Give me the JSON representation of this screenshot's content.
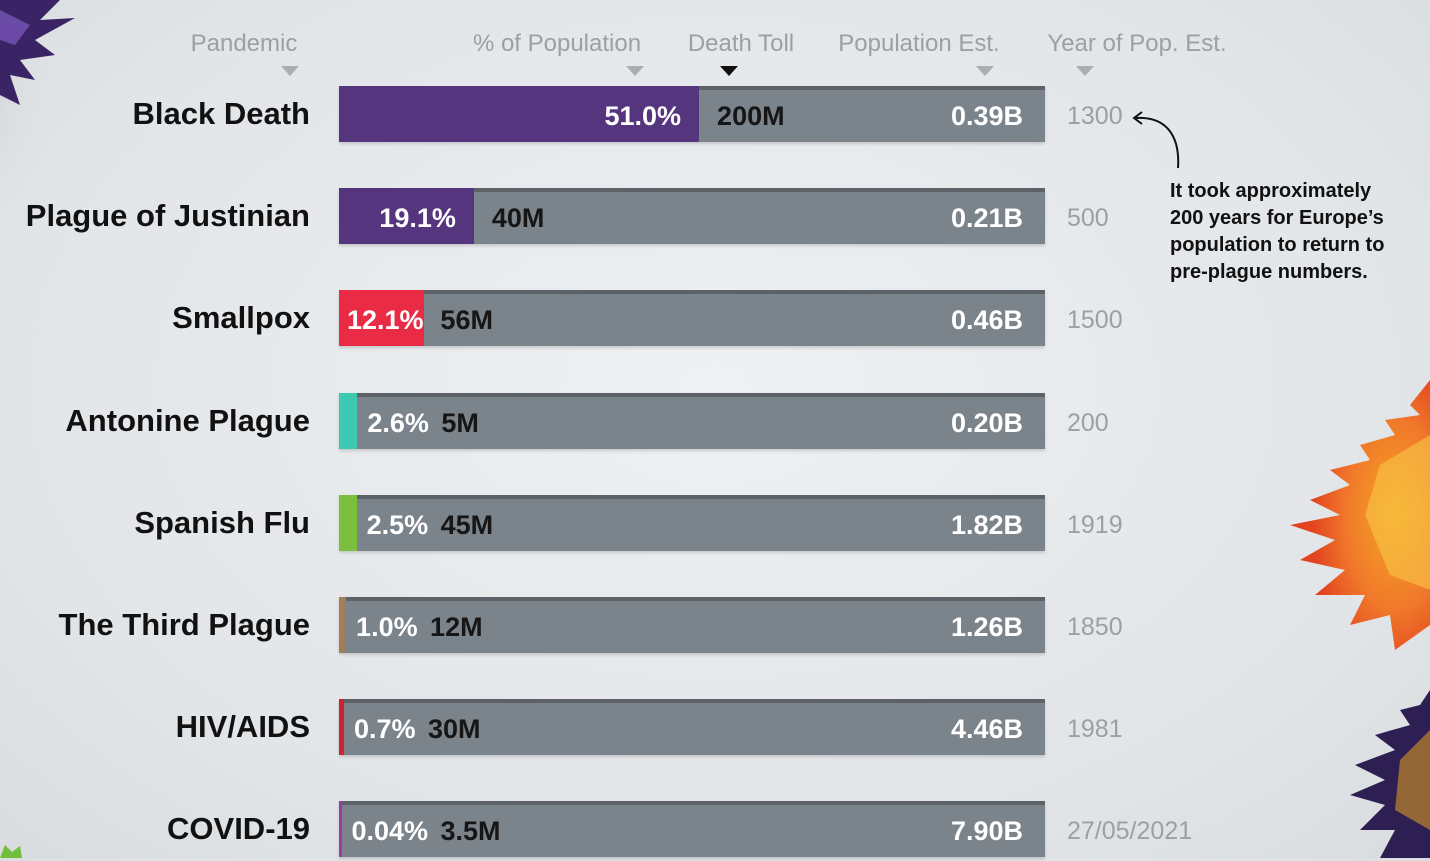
{
  "headers": {
    "pandemic": "Pandemic",
    "pct_population": "% of Population",
    "death_toll": "Death Toll",
    "population_est": "Population Est.",
    "year_of_pop_est": "Year of Pop. Est."
  },
  "colors": {
    "bar_background": "#7b838b",
    "sorted_arrow": "#111111",
    "unsorted_arrow": "#a9aeb3"
  },
  "annotation": {
    "text": "It took approximately 200 years for Europe’s population to return to pre-plague numbers."
  },
  "chart_data": {
    "type": "bar",
    "categories": [
      "Black Death",
      "Plague of Justinian",
      "Smallpox",
      "Antonine Plague",
      "Spanish Flu",
      "The Third Plague",
      "HIV/AIDS",
      "COVID-19"
    ],
    "values": [
      51.0,
      19.1,
      12.1,
      2.6,
      2.5,
      1.0,
      0.7,
      0.04
    ],
    "rows": [
      {
        "name": "Black Death",
        "pct": 51.0,
        "pct_label": "51.0%",
        "death_toll": "200M",
        "population": "0.39B",
        "year": "1300",
        "color": "#55357e"
      },
      {
        "name": "Plague of Justinian",
        "pct": 19.1,
        "pct_label": "19.1%",
        "death_toll": "40M",
        "population": "0.21B",
        "year": "500",
        "color": "#55357e"
      },
      {
        "name": "Smallpox",
        "pct": 12.1,
        "pct_label": "12.1%",
        "death_toll": "56M",
        "population": "0.46B",
        "year": "1500",
        "color": "#ea2b45"
      },
      {
        "name": "Antonine Plague",
        "pct": 2.6,
        "pct_label": "2.6%",
        "death_toll": "5M",
        "population": "0.20B",
        "year": "200",
        "color": "#3ec9b2"
      },
      {
        "name": "Spanish Flu",
        "pct": 2.5,
        "pct_label": "2.5%",
        "death_toll": "45M",
        "population": "1.82B",
        "year": "1919",
        "color": "#7bbf3c"
      },
      {
        "name": "The Third Plague",
        "pct": 1.0,
        "pct_label": "1.0%",
        "death_toll": "12M",
        "population": "1.26B",
        "year": "1850",
        "color": "#a07e5a"
      },
      {
        "name": "HIV/AIDS",
        "pct": 0.7,
        "pct_label": "0.7%",
        "death_toll": "30M",
        "population": "4.46B",
        "year": "1981",
        "color": "#d1212f"
      },
      {
        "name": "COVID-19",
        "pct": 0.04,
        "pct_label": "0.04%",
        "death_toll": "3.5M",
        "population": "7.90B",
        "year": "27/05/2021",
        "color": "#9b3aa8"
      }
    ],
    "sorted_by": "Death Toll",
    "xlim": [
      0,
      100
    ],
    "xlabel": "% of Population",
    "ylabel": "Pandemic"
  }
}
